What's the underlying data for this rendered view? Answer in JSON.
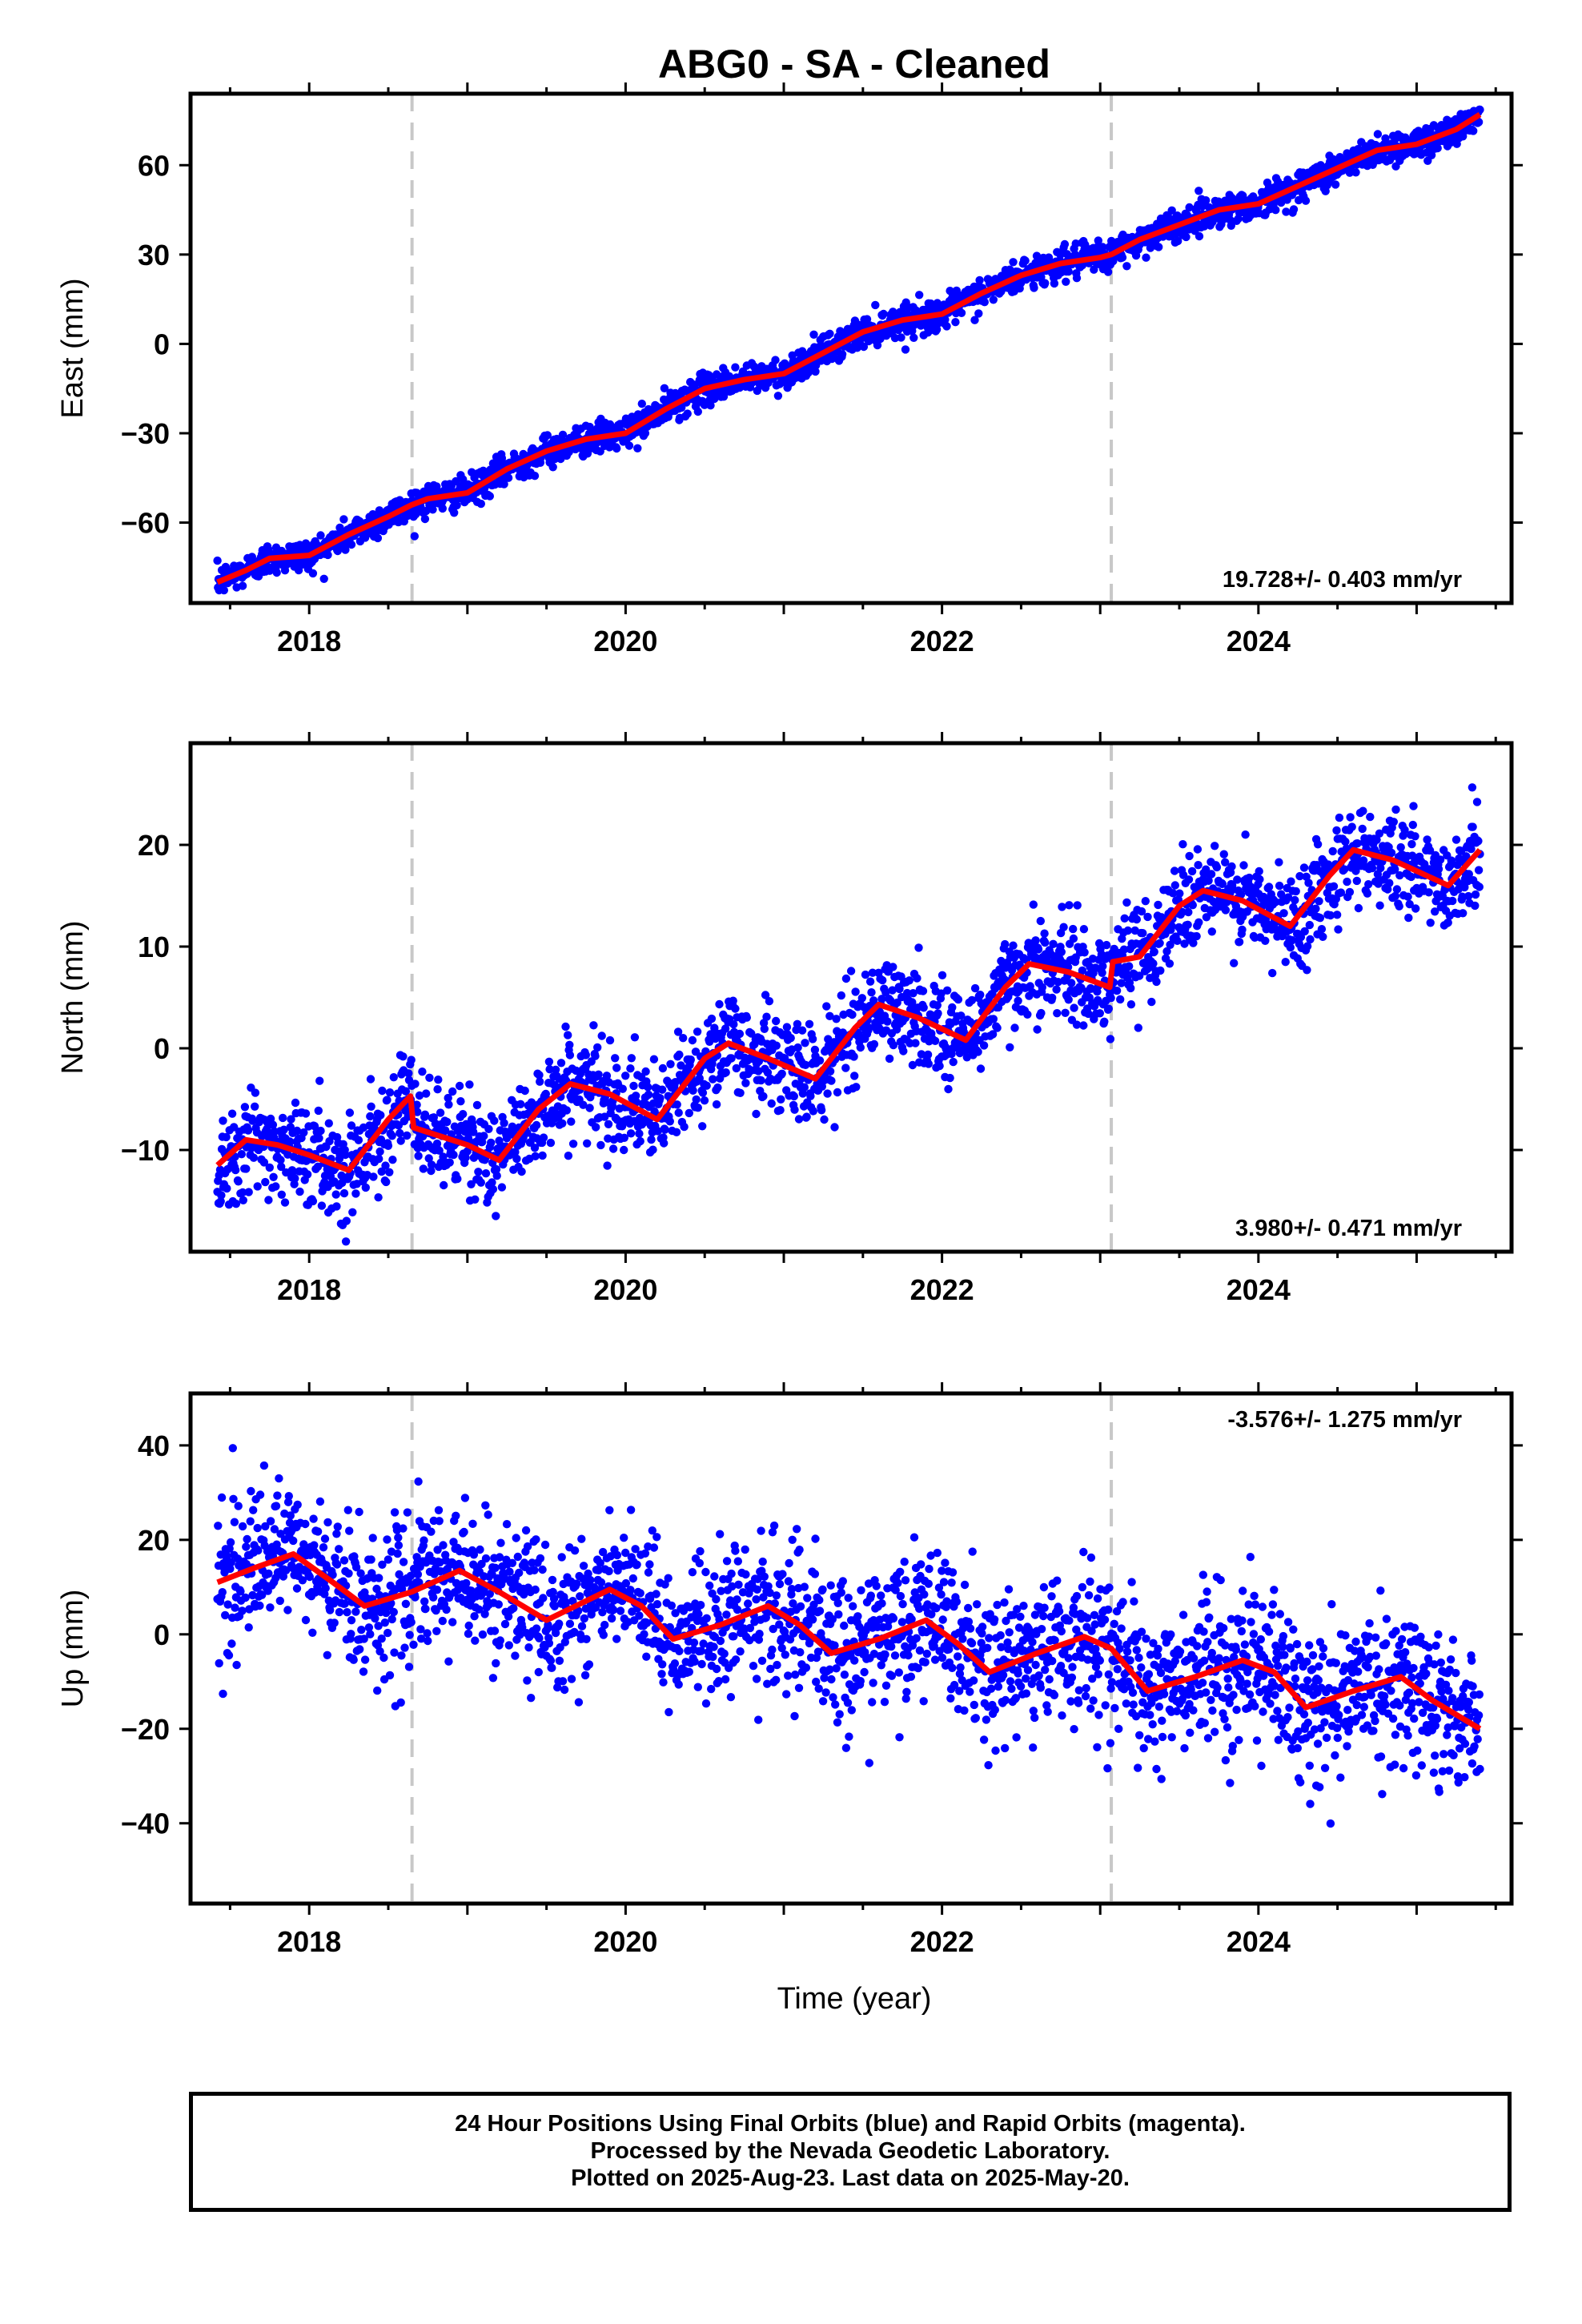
{
  "title": "ABG0  - SA - Cleaned",
  "xlabel": "Time (year)",
  "footer": {
    "line1": "24 Hour Positions Using Final Orbits (blue) and Rapid Orbits (magenta).",
    "line2": "Processed by the Nevada Geodetic Laboratory.",
    "line3": "Plotted on 2025-Aug-23. Last data on 2025-May-20."
  },
  "colors": {
    "points": "#0000ff",
    "fit": "#ff0000",
    "break_lines": "#c8c8c8",
    "frame": "#000000"
  },
  "chart_data": [
    {
      "type": "scatter",
      "component": "East",
      "ylabel": "East (mm)",
      "rate_label": "19.728+/- 0.403 mm/yr",
      "rate_position": "bottom-right",
      "xlim": [
        2017.25,
        2025.6
      ],
      "ylim": [
        -87,
        84
      ],
      "x_ticks": [
        2018,
        2020,
        2022,
        2024
      ],
      "y_ticks": [
        -60,
        -30,
        0,
        30,
        60
      ],
      "grid": false,
      "step_lines_x": [
        2018.65,
        2023.07
      ],
      "series": [
        {
          "name": "Final Orbits (blue)",
          "kind": "points",
          "approx_count": 2300
        },
        {
          "name": "Model fit",
          "kind": "line",
          "x": [
            2017.42,
            2017.6,
            2017.75,
            2018.0,
            2018.25,
            2018.5,
            2018.65,
            2018.75,
            2019.0,
            2019.25,
            2019.5,
            2019.75,
            2020.0,
            2020.25,
            2020.5,
            2020.75,
            2021.0,
            2021.25,
            2021.5,
            2021.75,
            2022.0,
            2022.25,
            2022.5,
            2022.75,
            2023.0,
            2023.07,
            2023.25,
            2023.5,
            2023.75,
            2024.0,
            2024.25,
            2024.5,
            2024.75,
            2025.0,
            2025.25,
            2025.4
          ],
          "y": [
            -80,
            -76,
            -72,
            -71,
            -64,
            -58,
            -54,
            -52,
            -50,
            -42,
            -36,
            -32,
            -30,
            -22,
            -15,
            -12,
            -10,
            -3,
            4,
            8,
            10,
            17,
            23,
            27,
            29,
            30,
            35,
            40,
            45,
            47,
            53,
            59,
            65,
            67,
            72,
            77
          ]
        }
      ]
    },
    {
      "type": "scatter",
      "component": "North",
      "ylabel": "North (mm)",
      "rate_label": "3.980+/- 0.471 mm/yr",
      "rate_position": "bottom-right",
      "xlim": [
        2017.25,
        2025.6
      ],
      "ylim": [
        -20,
        30
      ],
      "x_ticks": [
        2018,
        2020,
        2022,
        2024
      ],
      "y_ticks": [
        -10,
        0,
        10,
        20
      ],
      "grid": false,
      "step_lines_x": [
        2018.65,
        2023.07
      ],
      "series": [
        {
          "name": "Final Orbits (blue)",
          "kind": "points",
          "approx_count": 2300
        },
        {
          "name": "Model fit",
          "kind": "line",
          "x": [
            2017.42,
            2017.6,
            2017.8,
            2018.0,
            2018.25,
            2018.5,
            2018.64,
            2018.66,
            2018.8,
            2019.0,
            2019.2,
            2019.45,
            2019.65,
            2019.9,
            2020.2,
            2020.5,
            2020.65,
            2020.9,
            2021.2,
            2021.45,
            2021.6,
            2021.85,
            2022.15,
            2022.4,
            2022.55,
            2022.8,
            2023.06,
            2023.08,
            2023.25,
            2023.5,
            2023.65,
            2023.9,
            2024.2,
            2024.45,
            2024.6,
            2024.85,
            2025.2,
            2025.4
          ],
          "y": [
            -11.5,
            -9,
            -9.5,
            -10.5,
            -12,
            -7,
            -4.7,
            -7.8,
            -8.5,
            -9.5,
            -11,
            -6,
            -3.5,
            -4.5,
            -7,
            -1,
            0.5,
            -1,
            -3,
            2,
            4.3,
            3,
            0.8,
            6,
            8.3,
            7.5,
            6,
            8.5,
            9,
            14,
            15.5,
            14.5,
            12,
            17,
            19.5,
            18.5,
            16,
            19.5
          ]
        }
      ]
    },
    {
      "type": "scatter",
      "component": "Up",
      "ylabel": "Up (mm)",
      "rate_label": "-3.576+/- 1.275 mm/yr",
      "rate_position": "top-right",
      "xlim": [
        2017.25,
        2025.6
      ],
      "ylim": [
        -57,
        51
      ],
      "x_ticks": [
        2018,
        2020,
        2022,
        2024
      ],
      "y_ticks": [
        -40,
        -20,
        0,
        20,
        40
      ],
      "grid": false,
      "step_lines_x": [
        2018.65,
        2023.07
      ],
      "series": [
        {
          "name": "Final Orbits (blue)",
          "kind": "points",
          "approx_count": 2300
        },
        {
          "name": "Model fit",
          "kind": "line",
          "x": [
            2017.42,
            2017.65,
            2017.9,
            2018.15,
            2018.35,
            2018.65,
            2018.95,
            2019.2,
            2019.5,
            2019.9,
            2020.1,
            2020.3,
            2020.6,
            2020.9,
            2021.1,
            2021.3,
            2021.6,
            2021.9,
            2022.1,
            2022.3,
            2022.6,
            2022.9,
            2023.07,
            2023.3,
            2023.6,
            2023.9,
            2024.1,
            2024.3,
            2024.6,
            2024.9,
            2025.1,
            2025.4
          ],
          "y": [
            11,
            14,
            17,
            11,
            6,
            9,
            13.5,
            9,
            3,
            9.5,
            6,
            -1,
            2,
            6,
            2,
            -4,
            -1,
            3,
            -2,
            -8,
            -4,
            -0.5,
            -3,
            -12,
            -9,
            -5.5,
            -8,
            -15.5,
            -12,
            -9,
            -14,
            -20
          ]
        }
      ]
    }
  ]
}
